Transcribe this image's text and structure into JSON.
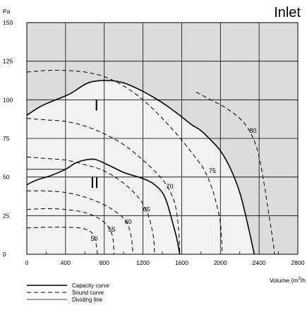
{
  "chart_data": {
    "type": "line",
    "title": "Inlet",
    "ylabel": "Pa",
    "xlabel_main": "Volume (m",
    "xlabel_sup": "3",
    "xlabel_tail": "/h",
    "xlim": [
      0,
      2800
    ],
    "ylim": [
      0,
      150
    ],
    "x_ticks": [
      0,
      400,
      800,
      1200,
      1600,
      2000,
      2400,
      2800
    ],
    "y_ticks": [
      0,
      25,
      50,
      75,
      100,
      125,
      150
    ],
    "grid": true,
    "region_labels": [
      {
        "text": "I",
        "x": 720,
        "y": 93
      },
      {
        "text": "II",
        "x": 700,
        "y": 43
      }
    ],
    "capacity_curves": [
      {
        "name": "I",
        "points": [
          [
            0,
            90
          ],
          [
            150,
            96
          ],
          [
            300,
            100
          ],
          [
            450,
            104
          ],
          [
            600,
            110
          ],
          [
            700,
            112
          ],
          [
            850,
            112.5
          ],
          [
            1000,
            111
          ],
          [
            1150,
            107
          ],
          [
            1300,
            102
          ],
          [
            1450,
            96
          ],
          [
            1600,
            89
          ],
          [
            1700,
            84
          ],
          [
            1800,
            80
          ],
          [
            1900,
            74
          ],
          [
            2000,
            67
          ],
          [
            2100,
            56
          ],
          [
            2200,
            40
          ],
          [
            2280,
            20
          ],
          [
            2350,
            0
          ]
        ]
      },
      {
        "name": "II",
        "points": [
          [
            0,
            45
          ],
          [
            100,
            48
          ],
          [
            250,
            51
          ],
          [
            400,
            55
          ],
          [
            500,
            59
          ],
          [
            600,
            61
          ],
          [
            700,
            61.5
          ],
          [
            800,
            59
          ],
          [
            900,
            56
          ],
          [
            1000,
            53
          ],
          [
            1100,
            51
          ],
          [
            1200,
            49
          ],
          [
            1300,
            46
          ],
          [
            1400,
            40
          ],
          [
            1450,
            33
          ],
          [
            1500,
            22
          ],
          [
            1550,
            10
          ],
          [
            1580,
            0
          ]
        ]
      }
    ],
    "dividing_line": [
      [
        0,
        55
      ],
      [
        400,
        55
      ]
    ],
    "sound_curves": [
      {
        "label": "80",
        "label_x": 2300,
        "label_y": 80,
        "points": [
          [
            1750,
            105
          ],
          [
            1900,
            100
          ],
          [
            2050,
            95
          ],
          [
            2200,
            88
          ],
          [
            2300,
            80
          ],
          [
            2380,
            68
          ],
          [
            2440,
            50
          ],
          [
            2490,
            30
          ],
          [
            2540,
            10
          ],
          [
            2560,
            0
          ]
        ]
      },
      {
        "label": "75",
        "label_x": 1880,
        "label_y": 54,
        "points": [
          [
            0,
            118
          ],
          [
            200,
            119
          ],
          [
            400,
            119
          ],
          [
            600,
            118
          ],
          [
            800,
            115
          ],
          [
            1000,
            109
          ],
          [
            1200,
            100
          ],
          [
            1400,
            88
          ],
          [
            1600,
            74
          ],
          [
            1750,
            62
          ],
          [
            1830,
            55
          ],
          [
            1900,
            45
          ],
          [
            1950,
            35
          ],
          [
            2000,
            20
          ],
          [
            2020,
            0
          ]
        ]
      },
      {
        "label": "70",
        "label_x": 1440,
        "label_y": 44,
        "points": [
          [
            0,
            88
          ],
          [
            200,
            87
          ],
          [
            400,
            86
          ],
          [
            600,
            83
          ],
          [
            800,
            78
          ],
          [
            1000,
            71
          ],
          [
            1200,
            61
          ],
          [
            1380,
            50
          ],
          [
            1450,
            44
          ],
          [
            1500,
            38
          ],
          [
            1540,
            30
          ],
          [
            1570,
            15
          ],
          [
            1580,
            0
          ]
        ]
      },
      {
        "label": "65",
        "label_x": 1200,
        "label_y": 29,
        "points": [
          [
            0,
            63
          ],
          [
            200,
            62
          ],
          [
            400,
            61
          ],
          [
            600,
            58
          ],
          [
            800,
            54
          ],
          [
            1000,
            46
          ],
          [
            1150,
            37
          ],
          [
            1230,
            29
          ],
          [
            1280,
            20
          ],
          [
            1310,
            10
          ],
          [
            1320,
            0
          ]
        ]
      },
      {
        "label": "60",
        "label_x": 1010,
        "label_y": 21,
        "points": [
          [
            0,
            41
          ],
          [
            200,
            41
          ],
          [
            400,
            40
          ],
          [
            600,
            37
          ],
          [
            800,
            32
          ],
          [
            950,
            26
          ],
          [
            1030,
            21
          ],
          [
            1070,
            14
          ],
          [
            1090,
            6
          ],
          [
            1095,
            0
          ]
        ]
      },
      {
        "label": "55",
        "label_x": 840,
        "label_y": 16,
        "points": [
          [
            0,
            29
          ],
          [
            200,
            29.5
          ],
          [
            400,
            29
          ],
          [
            600,
            27
          ],
          [
            750,
            23
          ],
          [
            850,
            17
          ],
          [
            890,
            10
          ],
          [
            900,
            0
          ]
        ]
      },
      {
        "label": "50",
        "label_x": 660,
        "label_y": 10,
        "points": [
          [
            0,
            17
          ],
          [
            200,
            17.5
          ],
          [
            400,
            17.5
          ],
          [
            550,
            17
          ],
          [
            650,
            15
          ],
          [
            700,
            11
          ],
          [
            720,
            5
          ],
          [
            730,
            0
          ]
        ]
      }
    ],
    "legend": [
      {
        "label": "Capacity curve",
        "style": "solid-thick"
      },
      {
        "label": "Sound curve",
        "style": "dashed"
      },
      {
        "label": "Dividing line",
        "style": "solid-thin"
      }
    ],
    "colors": {
      "plot_light": "#f2f2f2",
      "plot_dark": "#dcdcdc",
      "grid": "#000000",
      "curve": "#000000"
    }
  }
}
